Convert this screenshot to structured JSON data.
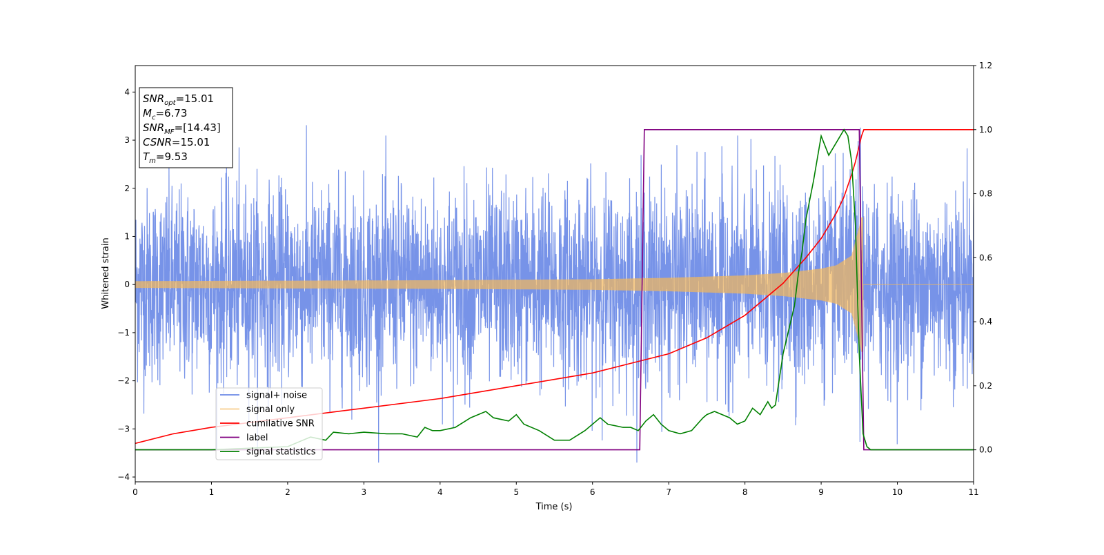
{
  "chart_data": {
    "type": "line",
    "title": "",
    "xlabel": "Time (s)",
    "ylabel": "Whitened strain",
    "xlim": [
      0,
      11
    ],
    "ylim": [
      -4.1,
      4.55
    ],
    "y2lim": [
      -0.1,
      1.2
    ],
    "x_ticks": [
      0,
      1,
      2,
      3,
      4,
      5,
      6,
      7,
      8,
      9,
      10,
      11
    ],
    "y_ticks": [
      -4,
      -3,
      -2,
      -1,
      0,
      1,
      2,
      3,
      4
    ],
    "y2_ticks": [
      "0.0",
      "0.2",
      "0.4",
      "0.6",
      "0.8",
      "1.0",
      "1.2"
    ],
    "grid": false,
    "legend_position": "lower-left",
    "colors": {
      "signal_noise": "#6b8ae6",
      "signal_only": "#f5b85a",
      "cumulative_snr": "#ff0000",
      "label": "#800080",
      "signal_statistics": "#008000"
    },
    "annotation": {
      "lines": [
        {
          "base": "SNR",
          "sub": "opt",
          "value": "=15.01"
        },
        {
          "base": "M",
          "sub": "c",
          "value": "=6.73"
        },
        {
          "base": "SNR",
          "sub": "MF",
          "value": "=[14.43]"
        },
        {
          "base": "CSNR",
          "sub": "",
          "value": "=15.01"
        },
        {
          "base": "T",
          "sub": "m",
          "value": "=9.53"
        }
      ]
    },
    "series": [
      {
        "name": "signal+ noise",
        "axis": "left",
        "description_values": {
          "noise_std": 1.0,
          "max": 4.15,
          "min": -3.7
        }
      },
      {
        "name": "signal only",
        "axis": "left",
        "envelope": {
          "x": [
            0,
            2,
            4,
            6,
            7,
            8,
            8.5,
            9,
            9.2,
            9.4,
            9.5,
            9.53
          ],
          "amp": [
            0.07,
            0.08,
            0.09,
            0.11,
            0.14,
            0.19,
            0.24,
            0.33,
            0.4,
            0.6,
            1.2,
            1.4
          ]
        },
        "zero_after": 9.55
      },
      {
        "name": "cumilative SNR",
        "axis": "right",
        "x": [
          0,
          0.5,
          1,
          2,
          3,
          4,
          5,
          6,
          6.5,
          7,
          7.5,
          8,
          8.5,
          8.8,
          9,
          9.2,
          9.3,
          9.4,
          9.45,
          9.5,
          9.53,
          9.56,
          11
        ],
        "y": [
          0.02,
          0.05,
          0.07,
          0.1,
          0.13,
          0.16,
          0.2,
          0.24,
          0.27,
          0.3,
          0.35,
          0.42,
          0.52,
          0.6,
          0.66,
          0.74,
          0.79,
          0.86,
          0.9,
          0.95,
          0.98,
          1.0,
          1.0
        ]
      },
      {
        "name": "label",
        "axis": "right",
        "x": [
          0,
          6.62,
          6.68,
          9.5,
          9.56,
          11
        ],
        "y": [
          0,
          0,
          1,
          1,
          0,
          0
        ]
      },
      {
        "name": "signal statistics",
        "axis": "right",
        "x": [
          0,
          0.5,
          1,
          1.5,
          2,
          2.2,
          2.3,
          2.5,
          2.6,
          2.8,
          3,
          3.3,
          3.5,
          3.7,
          3.8,
          3.9,
          4,
          4.2,
          4.4,
          4.6,
          4.7,
          4.9,
          5,
          5.1,
          5.3,
          5.5,
          5.7,
          5.9,
          6.1,
          6.2,
          6.4,
          6.5,
          6.6,
          6.7,
          6.8,
          6.9,
          7,
          7.15,
          7.3,
          7.45,
          7.5,
          7.6,
          7.8,
          7.9,
          8,
          8.1,
          8.2,
          8.3,
          8.35,
          8.4,
          8.5,
          8.55,
          8.6,
          8.65,
          8.7,
          8.75,
          8.8,
          8.9,
          9,
          9.1,
          9.2,
          9.3,
          9.35,
          9.4,
          9.45,
          9.5,
          9.55,
          9.6,
          9.65,
          11
        ],
        "y": [
          0,
          0,
          0,
          0.005,
          0.01,
          0.03,
          0.04,
          0.03,
          0.055,
          0.05,
          0.055,
          0.05,
          0.05,
          0.04,
          0.07,
          0.06,
          0.06,
          0.07,
          0.1,
          0.12,
          0.1,
          0.09,
          0.11,
          0.08,
          0.06,
          0.03,
          0.03,
          0.06,
          0.1,
          0.08,
          0.07,
          0.07,
          0.06,
          0.09,
          0.11,
          0.08,
          0.06,
          0.05,
          0.06,
          0.1,
          0.11,
          0.12,
          0.1,
          0.08,
          0.09,
          0.13,
          0.11,
          0.15,
          0.13,
          0.14,
          0.3,
          0.35,
          0.4,
          0.45,
          0.55,
          0.62,
          0.72,
          0.84,
          0.98,
          0.92,
          0.96,
          1.0,
          0.98,
          0.9,
          0.7,
          0.3,
          0.05,
          0.01,
          0,
          0
        ]
      }
    ]
  }
}
